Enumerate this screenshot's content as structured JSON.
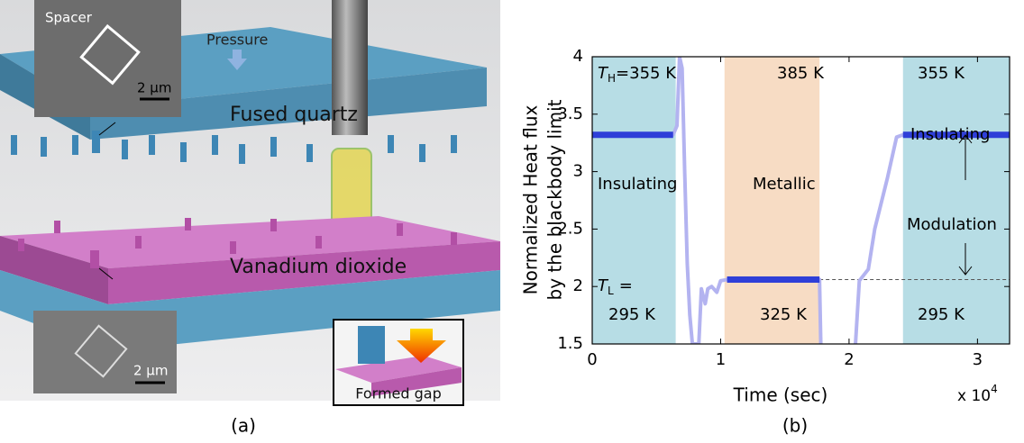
{
  "illustration": {
    "spacer": "Spacer",
    "scale_top": "2 μm",
    "pressure": "Pressure",
    "quartz": "Fused quartz",
    "vo2": "Vanadium dioxide",
    "scale_bottom": "2 μm",
    "formed_gap": "Formed gap",
    "panel": "(a)"
  },
  "chart_data": {
    "type": "line",
    "panel": "(b)",
    "y_label": [
      "Normalized Heat flux",
      "by the blackbody limit"
    ],
    "x_label": "Time (sec)",
    "x_multiplier": "x 10",
    "x_multiplier_exp": "4",
    "xlim": [
      0,
      3.25
    ],
    "ylim": [
      1.5,
      4
    ],
    "xticks": [
      0,
      1,
      2,
      3
    ],
    "yticks": [
      1.5,
      2,
      2.5,
      3,
      3.5,
      4
    ],
    "regions": [
      {
        "x": [
          0,
          0.65
        ],
        "color": "#b7dde5"
      },
      {
        "x": [
          1.03,
          1.77
        ],
        "color": "#f7dcc4"
      },
      {
        "x": [
          2.42,
          3.25
        ],
        "color": "#b7dde5"
      }
    ],
    "reference_line": {
      "y": 2.06,
      "x": [
        1.77,
        3.25
      ]
    },
    "x": [
      0,
      0.63,
      0.66,
      0.68,
      0.7,
      0.72,
      0.74,
      0.76,
      0.78,
      0.83,
      0.85,
      0.88,
      0.9,
      0.93,
      0.97,
      1.0,
      1.05,
      1.77,
      1.78,
      1.9,
      2.05,
      2.08,
      2.15,
      2.2,
      2.3,
      2.37,
      2.42,
      3.25
    ],
    "series": [
      {
        "color": "#b3b3f0",
        "width": 4,
        "values": [
          3.32,
          3.32,
          3.4,
          4.0,
          3.9,
          3.0,
          2.2,
          1.75,
          1.5,
          1.5,
          1.98,
          1.85,
          1.98,
          2.0,
          1.95,
          2.05,
          2.06,
          2.06,
          1.5,
          null,
          1.5,
          2.05,
          2.15,
          2.5,
          2.95,
          3.3,
          3.32,
          3.32
        ]
      },
      {
        "color": "#2f3fd8",
        "width": 7,
        "values": [
          3.32,
          3.32,
          null,
          null,
          null,
          null,
          null,
          null,
          null,
          null,
          null,
          null,
          null,
          null,
          null,
          null,
          2.06,
          2.06,
          null,
          null,
          null,
          null,
          null,
          null,
          null,
          null,
          3.32,
          3.32
        ]
      }
    ],
    "annotations": [
      "T",
      "H",
      "=355 K",
      "385 K",
      "355 K",
      "Insulating",
      "Metallic",
      "Insulating",
      "Modulation",
      "T",
      "L",
      "=",
      "295 K",
      "325 K",
      "295 K"
    ]
  }
}
